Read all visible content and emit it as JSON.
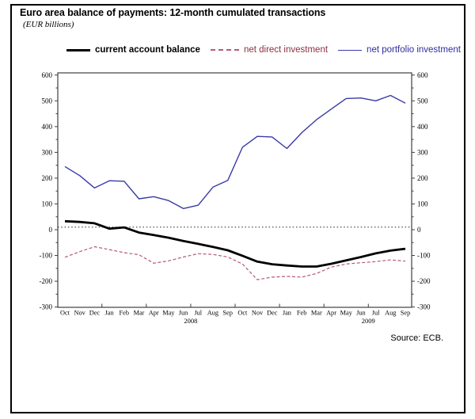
{
  "title": "Euro area balance of payments: 12-month cumulated transactions",
  "subtitle": "(EUR billions)",
  "source": "Source: ECB.",
  "legend": {
    "items": [
      {
        "label": "current account balance",
        "line_color": "#000000",
        "text_color": "#000000",
        "style": "solid-thick"
      },
      {
        "label": "net direct investment",
        "line_color": "#b75a72",
        "text_color": "#8e2f44",
        "style": "dashed"
      },
      {
        "label": "net portfolio investment",
        "line_color": "#3a3aa6",
        "text_color": "#2e2e9e",
        "style": "solid"
      }
    ]
  },
  "chart_data": {
    "type": "line",
    "title": "Euro area balance of payments: 12-month cumulated transactions",
    "unit": "EUR billions",
    "categories": [
      "Oct",
      "Nov",
      "Dec",
      "Jan",
      "Feb",
      "Mar",
      "Apr",
      "May",
      "Jun",
      "Jul",
      "Aug",
      "Sep",
      "Oct",
      "Nov",
      "Dec",
      "Jan",
      "Feb",
      "Mar",
      "Apr",
      "May",
      "Jun",
      "Jul",
      "Aug",
      "Sep"
    ],
    "year_labels": [
      {
        "label": "2008",
        "between_indices": [
          8,
          9
        ]
      },
      {
        "label": "2009",
        "between_indices": [
          20,
          21
        ]
      }
    ],
    "ylim": [
      -300,
      600
    ],
    "ytick_step": 100,
    "y_minor_step": 50,
    "reference_line_value": 10,
    "grid": false,
    "legend_position": "top",
    "x_quarter_tick_after_indices": [
      2,
      5,
      8,
      11,
      14,
      17,
      20
    ],
    "series": [
      {
        "name": "current account balance",
        "color": "#000000",
        "dash": "",
        "width": 2.8,
        "values": [
          33,
          30,
          25,
          4,
          9,
          -11,
          -21,
          -31,
          -44,
          -55,
          -67,
          -80,
          -101,
          -124,
          -134,
          -139,
          -143,
          -143,
          -132,
          -119,
          -106,
          -92,
          -81,
          -74
        ]
      },
      {
        "name": "net direct investment",
        "color": "#b75a72",
        "dash": "4 2.5",
        "width": 1.2,
        "values": [
          -107,
          -85,
          -66,
          -77,
          -89,
          -97,
          -130,
          -121,
          -106,
          -93,
          -96,
          -106,
          -133,
          -194,
          -184,
          -181,
          -184,
          -170,
          -145,
          -133,
          -128,
          -124,
          -117,
          -122
        ]
      },
      {
        "name": "net portfolio investment",
        "color": "#3a3aa6",
        "dash": "",
        "width": 1.4,
        "values": [
          245,
          210,
          162,
          190,
          188,
          120,
          128,
          113,
          82,
          95,
          165,
          191,
          320,
          362,
          360,
          315,
          376,
          427,
          468,
          509,
          511,
          500,
          521,
          491
        ]
      }
    ]
  }
}
